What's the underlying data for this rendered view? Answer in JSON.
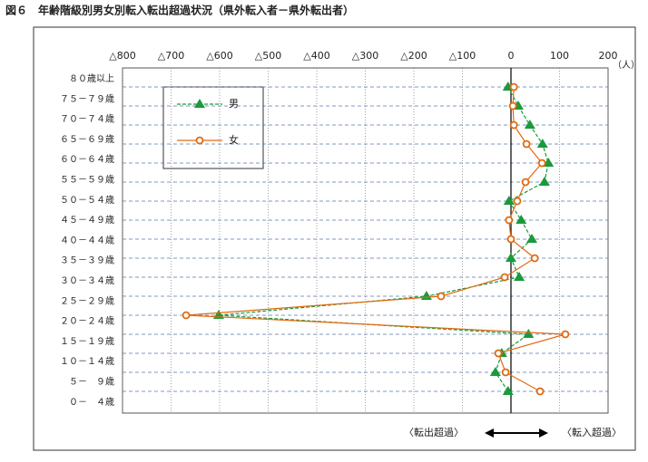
{
  "chart_data": {
    "type": "line",
    "orientation": "horizontal",
    "title": "図６　年齢階級別男女別転入転出超過状況（県外転入者－県外転出者）",
    "unit_label": "（人）",
    "annotation_left": "〈転出超過〉",
    "annotation_right": "〈転入超過〉",
    "categories": [
      "８０歳以上",
      "７５－７９歳",
      "７０－７４歳",
      "６５－６９歳",
      "６０－６４歳",
      "５５－５９歳",
      "５０－５４歳",
      "４５－４９歳",
      "４０－４４歳",
      "３５－３９歳",
      "３０－３４歳",
      "２５－２９歳",
      "２０－２４歳",
      "１５－１９歳",
      "１０－１４歳",
      "５－　９歳",
      "０－　４歳"
    ],
    "series": [
      {
        "name": "男",
        "color": "#1a9a3c",
        "marker": "triangle",
        "dashed": true,
        "values": [
          -6,
          15,
          39,
          65,
          77,
          69,
          -4,
          21,
          43,
          0,
          17,
          -174,
          -602,
          36,
          -19,
          -32,
          -6
        ]
      },
      {
        "name": "女",
        "color": "#e06a10",
        "marker": "circle",
        "dashed": false,
        "values": [
          6,
          4,
          6,
          32,
          64,
          30,
          13,
          -4,
          0,
          49,
          -13,
          -144,
          -669,
          112,
          -26,
          -11,
          60
        ]
      }
    ],
    "xlim": [
      -800,
      200
    ],
    "xticks": [
      {
        "value": -800,
        "label": "△800"
      },
      {
        "value": -700,
        "label": "△700"
      },
      {
        "value": -600,
        "label": "△600"
      },
      {
        "value": -500,
        "label": "△500"
      },
      {
        "value": -400,
        "label": "△400"
      },
      {
        "value": -300,
        "label": "△300"
      },
      {
        "value": -200,
        "label": "△200"
      },
      {
        "value": -100,
        "label": "△100"
      },
      0,
      100,
      200
    ],
    "grid": true
  }
}
